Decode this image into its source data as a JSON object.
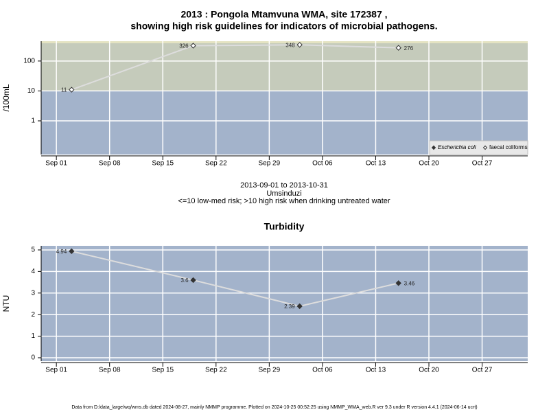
{
  "chart_data": [
    {
      "type": "line",
      "title": [
        "2013 : Pongola Mtamvuna WMA, site 172387 ,",
        "showing high risk guidelines for indicators of microbial pathogens."
      ],
      "notes": [
        "2013-09-01 to 2013-10-31",
        "Umsinduzi",
        "<=10 low-med risk; >10 high risk when drinking untreated water"
      ],
      "y_label": "/100mL",
      "x": [
        "2013-09-03",
        "2013-09-19",
        "2013-10-03",
        "2013-10-16"
      ],
      "series": [
        {
          "name": "Escherichia coli",
          "color": "#333333",
          "marker": "filled",
          "values": [
            null,
            null,
            null,
            null
          ]
        },
        {
          "name": "faecal coliforms",
          "color": "#333333",
          "line_color": "#dddddd",
          "marker": "open",
          "values": [
            11,
            326,
            348,
            276
          ]
        }
      ],
      "log_y": true,
      "ylim": [
        0.075,
        460
      ],
      "yticks": [
        1,
        10,
        100
      ],
      "xlim": [
        "2013-08-30",
        "2013-11-02"
      ],
      "xticks": [
        {
          "value": "2013-09-01",
          "label": "Sep 01"
        },
        {
          "value": "2013-09-08",
          "label": "Sep 08"
        },
        {
          "value": "2013-09-15",
          "label": "Sep 15"
        },
        {
          "value": "2013-09-22",
          "label": "Sep 22"
        },
        {
          "value": "2013-09-29",
          "label": "Sep 29"
        },
        {
          "value": "2013-10-06",
          "label": "Oct 06"
        },
        {
          "value": "2013-10-13",
          "label": "Oct 13"
        },
        {
          "value": "2013-10-20",
          "label": "Oct 20"
        },
        {
          "value": "2013-10-27",
          "label": "Oct 27"
        }
      ],
      "grid": true,
      "legend": "lower right",
      "risk_threshold": 10,
      "band_colors": {
        "low": "#a3b3cb",
        "high": "#c5cbbb"
      }
    },
    {
      "type": "line",
      "title": [
        "Turbidity"
      ],
      "y_label": "NTU",
      "x": [
        "2013-09-03",
        "2013-09-19",
        "2013-10-03",
        "2013-10-16"
      ],
      "values": [
        4.94,
        3.6,
        2.39,
        3.46
      ],
      "color": "#333333",
      "line_color": "#dddddd",
      "marker": "filled",
      "ylim": [
        -0.16,
        5.19
      ],
      "yticks": [
        0,
        1,
        2,
        3,
        4,
        5
      ],
      "xlim": [
        "2013-08-30",
        "2013-11-02"
      ],
      "xticks": [
        {
          "value": "2013-09-01",
          "label": "Sep 01"
        },
        {
          "value": "2013-09-08",
          "label": "Sep 08"
        },
        {
          "value": "2013-09-15",
          "label": "Sep 15"
        },
        {
          "value": "2013-09-22",
          "label": "Sep 22"
        },
        {
          "value": "2013-09-29",
          "label": "Sep 29"
        },
        {
          "value": "2013-10-06",
          "label": "Oct 06"
        },
        {
          "value": "2013-10-13",
          "label": "Oct 13"
        },
        {
          "value": "2013-10-20",
          "label": "Oct 20"
        },
        {
          "value": "2013-10-27",
          "label": "Oct 27"
        }
      ],
      "grid": true,
      "background": "#a3b3cb"
    }
  ],
  "footer": "Data from D:/data_large/wq/wms.db dated 2024-08-27, mainly NMMP programme. Plotted on 2024-10-25 00:52:25 using NMMP_WMA_web.R ver 9.3 under R version 4.4.1 (2024-06-14 ucrt)"
}
